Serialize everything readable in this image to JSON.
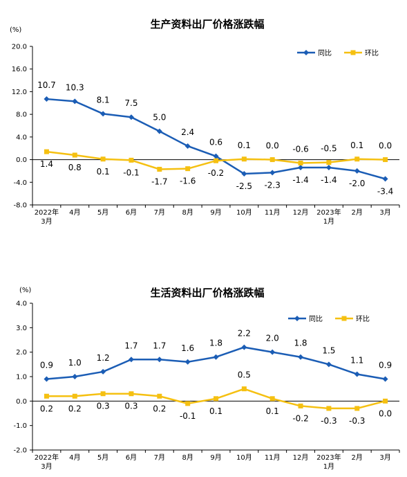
{
  "colors": {
    "yoy": "#1B5DB5",
    "mom": "#F5C011",
    "axis": "#000000"
  },
  "chart_data": [
    {
      "type": "line",
      "title": "生产资料出厂价格涨跌幅",
      "unit": "(%)",
      "ylim": [
        -8.0,
        20.0
      ],
      "yticks": [
        "20.0",
        "16.0",
        "12.0",
        "8.0",
        "4.0",
        "0.0",
        "-4.0",
        "-8.0"
      ],
      "ytick_values": [
        20,
        16,
        12,
        8,
        4,
        0,
        -4,
        -8
      ],
      "categories": [
        "2022年3月",
        "4月",
        "5月",
        "6月",
        "7月",
        "8月",
        "9月",
        "10月",
        "11月",
        "12月",
        "2023年1月",
        "2月",
        "3月"
      ],
      "xtick_lines": [
        [
          "2022年",
          "3月"
        ],
        [
          "4月"
        ],
        [
          "5月"
        ],
        [
          "6月"
        ],
        [
          "7月"
        ],
        [
          "8月"
        ],
        [
          "9月"
        ],
        [
          "10月"
        ],
        [
          "11月"
        ],
        [
          "12月"
        ],
        [
          "2023年",
          "1月"
        ],
        [
          "2月"
        ],
        [
          "3月"
        ]
      ],
      "legend_placement": "top-right",
      "series": [
        {
          "name": "同比",
          "key": "yoy",
          "values": [
            10.7,
            10.3,
            8.1,
            7.5,
            5.0,
            2.4,
            0.6,
            -2.5,
            -2.3,
            -1.4,
            -1.4,
            -2.0,
            -3.4
          ],
          "labels": [
            "10.7",
            "10.3",
            "8.1",
            "7.5",
            "5.0",
            "2.4",
            "0.6",
            "-2.5",
            "-2.3",
            "-1.4",
            "-1.4",
            "-2.0",
            "-3.4"
          ]
        },
        {
          "name": "环比",
          "key": "mom",
          "values": [
            1.4,
            0.8,
            0.1,
            -0.1,
            -1.7,
            -1.6,
            -0.2,
            0.1,
            0.0,
            -0.6,
            -0.5,
            0.1,
            0.0
          ],
          "labels": [
            "1.4",
            "0.8",
            "0.1",
            "-0.1",
            "-1.7",
            "-1.6",
            "-0.2",
            "0.1",
            "0.0",
            "-0.6",
            "-0.5",
            "0.1",
            "0.0"
          ]
        }
      ]
    },
    {
      "type": "line",
      "title": "生活资料出厂价格涨跌幅",
      "unit": "(%)",
      "ylim": [
        -2.0,
        4.0
      ],
      "yticks": [
        "4.0",
        "3.0",
        "2.0",
        "1.0",
        "0.0",
        "-1.0",
        "-2.0"
      ],
      "ytick_values": [
        4,
        3,
        2,
        1,
        0,
        -1,
        -2
      ],
      "categories": [
        "2022年3月",
        "4月",
        "5月",
        "6月",
        "7月",
        "8月",
        "9月",
        "10月",
        "11月",
        "12月",
        "2023年1月",
        "2月",
        "3月"
      ],
      "xtick_lines": [
        [
          "2022年",
          "3月"
        ],
        [
          "4月"
        ],
        [
          "5月"
        ],
        [
          "6月"
        ],
        [
          "7月"
        ],
        [
          "8月"
        ],
        [
          "9月"
        ],
        [
          "10月"
        ],
        [
          "11月"
        ],
        [
          "12月"
        ],
        [
          "2023年",
          "1月"
        ],
        [
          "2月"
        ],
        [
          "3月"
        ]
      ],
      "legend_placement": "top-right",
      "series": [
        {
          "name": "同比",
          "key": "yoy",
          "values": [
            0.9,
            1.0,
            1.2,
            1.7,
            1.7,
            1.6,
            1.8,
            2.2,
            2.0,
            1.8,
            1.5,
            1.1,
            0.9
          ],
          "labels": [
            "0.9",
            "1.0",
            "1.2",
            "1.7",
            "1.7",
            "1.6",
            "1.8",
            "2.2",
            "2.0",
            "1.8",
            "1.5",
            "1.1",
            "0.9"
          ]
        },
        {
          "name": "环比",
          "key": "mom",
          "values": [
            0.2,
            0.2,
            0.3,
            0.3,
            0.2,
            -0.1,
            0.1,
            0.5,
            0.1,
            -0.2,
            -0.3,
            -0.3,
            0.0
          ],
          "labels": [
            "0.2",
            "0.2",
            "0.3",
            "0.3",
            "0.2",
            "-0.1",
            "0.1",
            "0.5",
            "0.1",
            "-0.2",
            "-0.3",
            "-0.3",
            "0.0"
          ]
        }
      ]
    }
  ]
}
